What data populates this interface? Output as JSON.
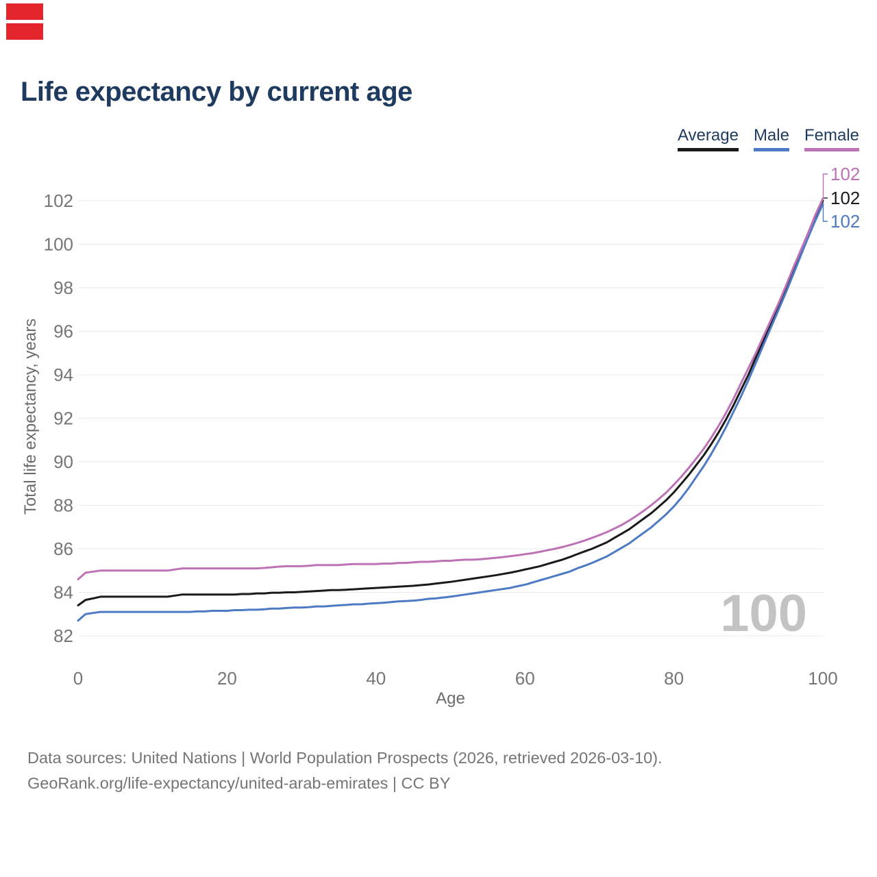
{
  "page": {
    "background": "#ffffff"
  },
  "flag": {
    "stripe_color": "#e5252c"
  },
  "header": {
    "title": "Life expectancy by current age",
    "title_color": "#1e3a5f"
  },
  "legend": [
    {
      "label": "Average",
      "color": "#1a1a1a"
    },
    {
      "label": "Male",
      "color": "#4d7ac4"
    },
    {
      "label": "Female",
      "color": "#bd72b6"
    }
  ],
  "chart_data": {
    "type": "line",
    "title": "Life expectancy by current age",
    "xlabel": "Age",
    "ylabel": "Total life expectancy, years",
    "xlim": [
      0,
      100
    ],
    "ylim": [
      82,
      103
    ],
    "x_ticks": [
      0,
      20,
      40,
      60,
      80,
      100
    ],
    "y_ticks": [
      102,
      100,
      98,
      96,
      94,
      92,
      90,
      88,
      86,
      84,
      82
    ],
    "grid": "horizontal",
    "legend_position": "top-right",
    "watermark": "100",
    "x": [
      0,
      1,
      2,
      3,
      4,
      5,
      6,
      7,
      8,
      9,
      10,
      11,
      12,
      13,
      14,
      15,
      16,
      17,
      18,
      19,
      20,
      21,
      22,
      23,
      24,
      25,
      26,
      27,
      28,
      29,
      30,
      31,
      32,
      33,
      34,
      35,
      36,
      37,
      38,
      39,
      40,
      41,
      42,
      43,
      44,
      45,
      46,
      47,
      48,
      49,
      50,
      51,
      52,
      53,
      54,
      55,
      56,
      57,
      58,
      59,
      60,
      61,
      62,
      63,
      64,
      65,
      66,
      67,
      68,
      69,
      70,
      71,
      72,
      73,
      74,
      75,
      76,
      77,
      78,
      79,
      80,
      81,
      82,
      83,
      84,
      85,
      86,
      87,
      88,
      89,
      90,
      91,
      92,
      93,
      94,
      95,
      96,
      97,
      98,
      99,
      100
    ],
    "series": [
      {
        "name": "Average",
        "color": "#1a1a1a",
        "end_label": "102",
        "values": [
          83.4,
          83.65,
          83.72,
          83.8,
          83.8,
          83.8,
          83.8,
          83.8,
          83.8,
          83.8,
          83.8,
          83.8,
          83.8,
          83.85,
          83.9,
          83.9,
          83.9,
          83.9,
          83.9,
          83.9,
          83.9,
          83.9,
          83.92,
          83.92,
          83.95,
          83.95,
          83.98,
          83.98,
          84.0,
          84.0,
          84.02,
          84.04,
          84.06,
          84.08,
          84.1,
          84.1,
          84.12,
          84.14,
          84.16,
          84.18,
          84.2,
          84.22,
          84.24,
          84.26,
          84.28,
          84.3,
          84.33,
          84.36,
          84.4,
          84.44,
          84.48,
          84.53,
          84.58,
          84.63,
          84.68,
          84.73,
          84.78,
          84.84,
          84.9,
          84.97,
          85.05,
          85.12,
          85.2,
          85.3,
          85.4,
          85.5,
          85.62,
          85.75,
          85.88,
          86.0,
          86.15,
          86.3,
          86.5,
          86.7,
          86.9,
          87.15,
          87.4,
          87.65,
          87.95,
          88.25,
          88.6,
          89.0,
          89.4,
          89.85,
          90.3,
          90.8,
          91.35,
          91.95,
          92.6,
          93.3,
          94.0,
          94.8,
          95.55,
          96.3,
          97.1,
          97.9,
          98.75,
          99.6,
          100.4,
          101.2,
          102.0
        ]
      },
      {
        "name": "Male",
        "color": "#4d7ac4",
        "end_label": "102",
        "values": [
          82.7,
          83.0,
          83.05,
          83.1,
          83.1,
          83.1,
          83.1,
          83.1,
          83.1,
          83.1,
          83.1,
          83.1,
          83.1,
          83.1,
          83.1,
          83.1,
          83.12,
          83.12,
          83.15,
          83.15,
          83.15,
          83.18,
          83.18,
          83.2,
          83.2,
          83.22,
          83.25,
          83.25,
          83.28,
          83.3,
          83.3,
          83.32,
          83.35,
          83.35,
          83.38,
          83.4,
          83.42,
          83.45,
          83.45,
          83.48,
          83.5,
          83.52,
          83.55,
          83.58,
          83.6,
          83.62,
          83.65,
          83.7,
          83.72,
          83.76,
          83.8,
          83.85,
          83.9,
          83.95,
          84.0,
          84.05,
          84.1,
          84.15,
          84.2,
          84.28,
          84.35,
          84.45,
          84.55,
          84.65,
          84.75,
          84.85,
          84.95,
          85.1,
          85.22,
          85.35,
          85.5,
          85.65,
          85.85,
          86.05,
          86.25,
          86.5,
          86.75,
          87.0,
          87.3,
          87.6,
          87.95,
          88.35,
          88.8,
          89.3,
          89.8,
          90.35,
          90.95,
          91.6,
          92.3,
          93.0,
          93.75,
          94.55,
          95.35,
          96.15,
          96.95,
          97.75,
          98.6,
          99.45,
          100.3,
          101.1,
          101.85
        ]
      },
      {
        "name": "Female",
        "color": "#bd72b6",
        "end_label": "102",
        "values": [
          84.6,
          84.9,
          84.95,
          85.0,
          85.0,
          85.0,
          85.0,
          85.0,
          85.0,
          85.0,
          85.0,
          85.0,
          85.0,
          85.05,
          85.1,
          85.1,
          85.1,
          85.1,
          85.1,
          85.1,
          85.1,
          85.1,
          85.1,
          85.1,
          85.1,
          85.12,
          85.15,
          85.18,
          85.2,
          85.2,
          85.2,
          85.22,
          85.25,
          85.25,
          85.25,
          85.25,
          85.28,
          85.3,
          85.3,
          85.3,
          85.3,
          85.32,
          85.32,
          85.35,
          85.35,
          85.38,
          85.4,
          85.4,
          85.42,
          85.45,
          85.45,
          85.48,
          85.5,
          85.5,
          85.52,
          85.55,
          85.58,
          85.62,
          85.66,
          85.7,
          85.75,
          85.8,
          85.86,
          85.93,
          86.0,
          86.08,
          86.17,
          86.27,
          86.38,
          86.5,
          86.63,
          86.77,
          86.93,
          87.1,
          87.3,
          87.52,
          87.76,
          88.02,
          88.3,
          88.6,
          88.95,
          89.32,
          89.72,
          90.15,
          90.6,
          91.1,
          91.65,
          92.25,
          92.9,
          93.6,
          94.3,
          95.0,
          95.75,
          96.5,
          97.25,
          98.05,
          98.9,
          99.7,
          100.5,
          101.35,
          102.1
        ]
      }
    ]
  },
  "footer": {
    "line1": "Data sources: United Nations | World Population Prospects (2026, retrieved 2026-03-10).",
    "line2": "GeoRank.org/life-expectancy/united-arab-emirates | CC BY"
  }
}
